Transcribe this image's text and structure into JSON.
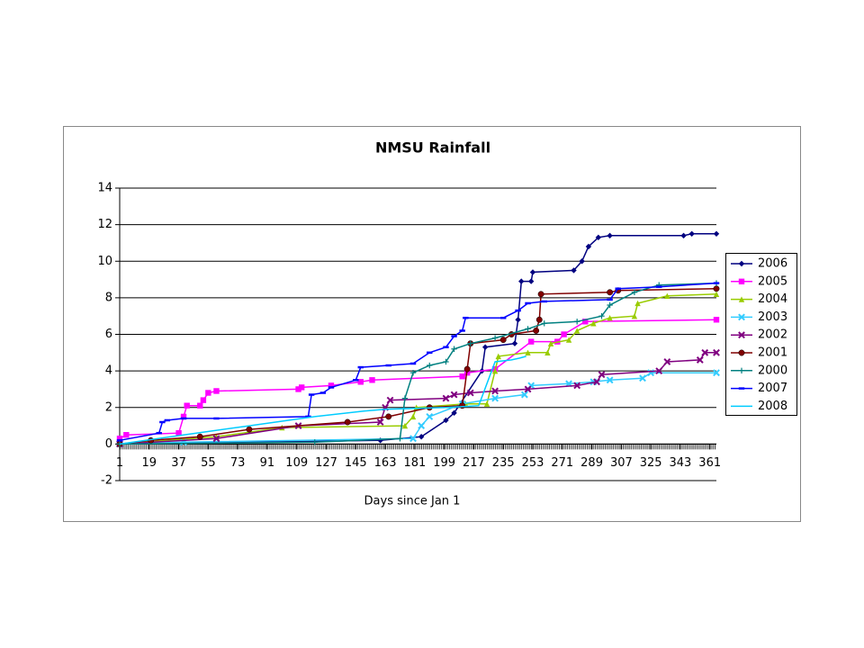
{
  "chart_data": {
    "type": "line",
    "title": "NMSU Rainfall",
    "x_label": "Days since Jan 1",
    "xlim": [
      1,
      365
    ],
    "xticks": [
      1,
      19,
      37,
      55,
      73,
      91,
      109,
      127,
      145,
      163,
      181,
      199,
      217,
      235,
      253,
      271,
      289,
      307,
      325,
      343,
      361
    ],
    "ylim": [
      -2,
      14
    ],
    "yticks": [
      -2,
      0,
      2,
      4,
      6,
      8,
      10,
      12,
      14
    ],
    "grid": true,
    "legend": "right",
    "series": [
      {
        "name": "2006",
        "color": "#000080",
        "marker": "diamond",
        "x": [
          1,
          160,
          185,
          200,
          205,
          222,
          224,
          242,
          244,
          246,
          252,
          253,
          278,
          283,
          287,
          293,
          300,
          345,
          350,
          365
        ],
        "values": [
          0,
          0.2,
          0.4,
          1.3,
          1.7,
          4.0,
          5.3,
          5.5,
          6.8,
          8.9,
          8.9,
          9.4,
          9.5,
          10.0,
          10.8,
          11.3,
          11.4,
          11.4,
          11.5,
          11.5
        ]
      },
      {
        "name": "2005",
        "color": "#FF00FF",
        "marker": "square",
        "x": [
          1,
          5,
          37,
          40,
          42,
          50,
          52,
          55,
          60,
          110,
          112,
          130,
          148,
          155,
          210,
          213,
          230,
          252,
          268,
          272,
          285,
          365
        ],
        "values": [
          0.3,
          0.5,
          0.6,
          1.5,
          2.1,
          2.1,
          2.4,
          2.8,
          2.9,
          3.0,
          3.1,
          3.2,
          3.4,
          3.5,
          3.7,
          3.9,
          4.1,
          5.6,
          5.6,
          6.0,
          6.7,
          6.8
        ]
      },
      {
        "name": "2004",
        "color": "#99CC00",
        "marker": "triangle",
        "x": [
          1,
          60,
          100,
          175,
          180,
          182,
          212,
          225,
          230,
          232,
          250,
          262,
          264,
          275,
          280,
          290,
          300,
          315,
          317,
          335,
          365
        ],
        "values": [
          0,
          0.4,
          0.9,
          1.0,
          1.5,
          2.0,
          2.2,
          2.2,
          4.0,
          4.8,
          5.0,
          5.0,
          5.5,
          5.7,
          6.2,
          6.6,
          6.9,
          7.0,
          7.7,
          8.1,
          8.2
        ]
      },
      {
        "name": "2003",
        "color": "#33CCFF",
        "marker": "x",
        "x": [
          1,
          40,
          180,
          185,
          190,
          210,
          230,
          248,
          252,
          275,
          290,
          300,
          320,
          325,
          365
        ],
        "values": [
          0,
          0.1,
          0.3,
          1.0,
          1.5,
          2.2,
          2.5,
          2.7,
          3.2,
          3.3,
          3.4,
          3.5,
          3.6,
          3.9,
          3.9
        ]
      },
      {
        "name": "2002",
        "color": "#800080",
        "marker": "x",
        "x": [
          1,
          60,
          110,
          160,
          163,
          166,
          200,
          205,
          215,
          230,
          250,
          280,
          292,
          295,
          330,
          335,
          355,
          358,
          365
        ],
        "values": [
          0,
          0.3,
          1.0,
          1.2,
          2.0,
          2.4,
          2.5,
          2.7,
          2.8,
          2.9,
          3.0,
          3.2,
          3.4,
          3.8,
          4.0,
          4.5,
          4.6,
          5.0,
          5.0
        ]
      },
      {
        "name": "2001",
        "color": "#800000",
        "marker": "circle",
        "x": [
          1,
          20,
          50,
          80,
          140,
          165,
          190,
          210,
          213,
          215,
          235,
          240,
          255,
          257,
          258,
          300,
          305,
          365
        ],
        "values": [
          0,
          0.2,
          0.4,
          0.8,
          1.2,
          1.5,
          2.0,
          2.1,
          4.1,
          5.5,
          5.7,
          6.0,
          6.2,
          6.8,
          8.2,
          8.3,
          8.4,
          8.5
        ]
      },
      {
        "name": "2000",
        "color": "#008080",
        "marker": "plus",
        "x": [
          1,
          120,
          172,
          175,
          180,
          190,
          200,
          205,
          215,
          230,
          250,
          260,
          280,
          295,
          300,
          315,
          330,
          365
        ],
        "values": [
          0,
          0.1,
          0.3,
          2.5,
          3.9,
          4.3,
          4.5,
          5.2,
          5.5,
          5.8,
          6.3,
          6.6,
          6.7,
          7.0,
          7.6,
          8.3,
          8.7,
          8.8
        ]
      },
      {
        "name": "2007",
        "color": "#0000FF",
        "marker": "dash",
        "x": [
          1,
          25,
          27,
          30,
          40,
          60,
          116,
          118,
          125,
          130,
          145,
          148,
          165,
          180,
          190,
          200,
          205,
          210,
          212,
          235,
          244,
          250,
          260,
          300,
          305,
          330,
          365
        ],
        "values": [
          0.2,
          0.6,
          1.2,
          1.3,
          1.4,
          1.4,
          1.5,
          2.7,
          2.8,
          3.1,
          3.5,
          4.2,
          4.3,
          4.4,
          5.0,
          5.3,
          5.9,
          6.2,
          6.9,
          6.9,
          7.3,
          7.7,
          7.8,
          7.9,
          8.5,
          8.6,
          8.8
        ]
      },
      {
        "name": "2008",
        "color": "#00CCFF",
        "marker": "none",
        "x": [
          1,
          40,
          80,
          120,
          150,
          163,
          200,
          220,
          230,
          240,
          245,
          249
        ],
        "values": [
          0,
          0.5,
          1.0,
          1.5,
          1.8,
          1.9,
          2.0,
          2.1,
          4.5,
          4.6,
          4.7,
          4.8
        ]
      }
    ]
  }
}
